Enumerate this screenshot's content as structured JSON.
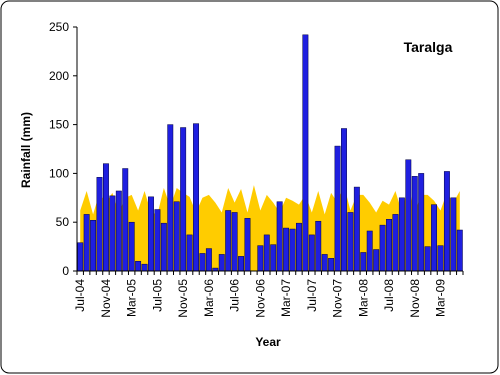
{
  "chart_data": {
    "type": "bar",
    "title": "Taralga",
    "y_label": "Rainfall (mm)",
    "x_label": "Year",
    "categories": [
      "Jul-04",
      null,
      null,
      null,
      "Nov-04",
      null,
      null,
      null,
      "Mar-05",
      null,
      null,
      null,
      "Jul-05",
      null,
      null,
      null,
      "Nov-05",
      null,
      null,
      null,
      "Mar-06",
      null,
      null,
      null,
      "Jul-06",
      null,
      null,
      null,
      "Nov-06",
      null,
      null,
      null,
      "Mar-07",
      null,
      null,
      null,
      "Jul-07",
      null,
      null,
      null,
      "Nov-07",
      null,
      null,
      null,
      "Mar-08",
      null,
      null,
      null,
      "Jul-08",
      null,
      null,
      null,
      "Nov-08",
      null,
      null,
      null,
      "Mar-09",
      null,
      null,
      null
    ],
    "series": [
      {
        "color": "#1f1fe0",
        "values": [
          29,
          58,
          52,
          96,
          110,
          77,
          82,
          105,
          50,
          10,
          7,
          76,
          63,
          49,
          150,
          71,
          147,
          37,
          151,
          18,
          23,
          3,
          17,
          62,
          60,
          15,
          54,
          0,
          26,
          37,
          27,
          71,
          44,
          43,
          49,
          242,
          37,
          51,
          17,
          13,
          128,
          146,
          60,
          86,
          19,
          41,
          22,
          47,
          53,
          58,
          75,
          114,
          97,
          100,
          25,
          68,
          26,
          102,
          75,
          42
        ]
      },
      {
        "color": "#ffcc00",
        "values": [
          62,
          82,
          58,
          80,
          70,
          80,
          60,
          75,
          78,
          62,
          82,
          60,
          58,
          85,
          66,
          85,
          80,
          76,
          60,
          75,
          78,
          70,
          60,
          85,
          70,
          84,
          60,
          88,
          62,
          78,
          70,
          60,
          75,
          72,
          68,
          78,
          60,
          82,
          58,
          80,
          70,
          88,
          62,
          78,
          78,
          70,
          60,
          72,
          68,
          82,
          60,
          88,
          60,
          78,
          78,
          72,
          62,
          80,
          70,
          82
        ]
      }
    ],
    "ylim": [
      0,
      250
    ],
    "yticks": [
      0,
      50,
      100,
      150,
      200,
      250
    ]
  }
}
